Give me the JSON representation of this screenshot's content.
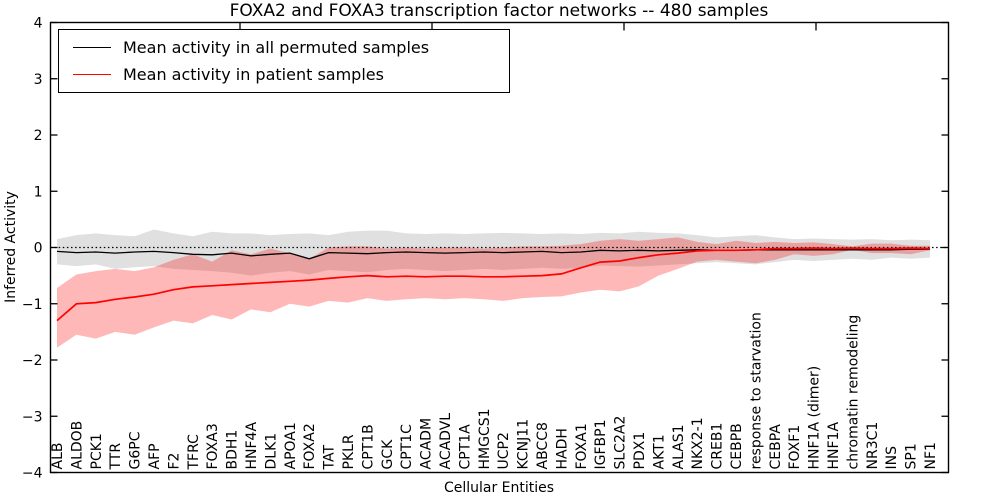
{
  "figure": {
    "title": "FOXA2 and FOXA3 transcription factor networks -- 480 samples",
    "xlabel": "Cellular Entities",
    "ylabel": "Inferred Activity"
  },
  "chart_data": {
    "type": "line",
    "title": "FOXA2 and FOXA3 transcription factor networks -- 480 samples",
    "xlabel": "Cellular Entities",
    "ylabel": "Inferred Activity",
    "ylim": [
      -4,
      4
    ],
    "yticks": [
      4,
      3,
      2,
      1,
      0,
      -1,
      -2,
      -3,
      -4
    ],
    "grid": false,
    "legend_position": "upper left",
    "zero_line": {
      "y": 0,
      "style": "dotted",
      "color": "#000000"
    },
    "categories": [
      "ALB",
      "ALDOB",
      "PCK1",
      "TTR",
      "G6PC",
      "AFP",
      "F2",
      "TFRC",
      "FOXA3",
      "BDH1",
      "HNF4A",
      "DLK1",
      "APOA1",
      "FOXA2",
      "TAT",
      "PKLR",
      "CPT1B",
      "GCK",
      "CPT1C",
      "ACADM",
      "ACADVL",
      "CPT1A",
      "HMGCS1",
      "UCP2",
      "KCNJ11",
      "ABCC8",
      "HADH",
      "FOXA1",
      "IGFBP1",
      "SLC2A2",
      "PDX1",
      "AKT1",
      "ALAS1",
      "NKX2-1",
      "CREB1",
      "CEBPB",
      "response to starvation",
      "CEBPA",
      "FOXF1",
      "HNF1A (dimer)",
      "HNF1A",
      "chromatin remodeling",
      "NR3C1",
      "INS",
      "SP1",
      "NF1"
    ],
    "series": [
      {
        "name": "Mean activity in all permuted samples",
        "color": "#000000",
        "band_color": "#000000",
        "band_opacity": 0.12,
        "values": [
          -0.07,
          -0.09,
          -0.08,
          -0.1,
          -0.08,
          -0.07,
          -0.09,
          -0.12,
          -0.13,
          -0.1,
          -0.15,
          -0.12,
          -0.1,
          -0.2,
          -0.09,
          -0.1,
          -0.11,
          -0.09,
          -0.08,
          -0.09,
          -0.1,
          -0.09,
          -0.08,
          -0.09,
          -0.08,
          -0.07,
          -0.09,
          -0.08,
          -0.05,
          -0.06,
          -0.05,
          -0.06,
          -0.05,
          -0.04,
          -0.05,
          -0.05,
          -0.04,
          -0.04,
          -0.04,
          -0.04,
          -0.04,
          -0.04,
          -0.04,
          -0.04,
          -0.03,
          -0.03
        ],
        "band_upper": [
          0.15,
          0.22,
          0.25,
          0.22,
          0.2,
          0.32,
          0.25,
          0.2,
          0.28,
          0.25,
          0.25,
          0.22,
          0.24,
          0.25,
          0.22,
          0.28,
          0.3,
          0.3,
          0.25,
          0.24,
          0.25,
          0.24,
          0.25,
          0.26,
          0.25,
          0.24,
          0.25,
          0.24,
          0.26,
          0.25,
          0.28,
          0.26,
          0.25,
          0.22,
          0.18,
          0.2,
          0.22,
          0.18,
          0.15,
          0.16,
          0.15,
          0.14,
          0.15,
          0.13,
          0.14,
          0.13
        ],
        "band_lower": [
          -0.3,
          -0.33,
          -0.3,
          -0.38,
          -0.35,
          -0.33,
          -0.38,
          -0.4,
          -0.42,
          -0.45,
          -0.5,
          -0.45,
          -0.42,
          -0.48,
          -0.4,
          -0.42,
          -0.44,
          -0.4,
          -0.38,
          -0.4,
          -0.42,
          -0.4,
          -0.38,
          -0.4,
          -0.38,
          -0.36,
          -0.38,
          -0.36,
          -0.32,
          -0.33,
          -0.34,
          -0.32,
          -0.3,
          -0.28,
          -0.26,
          -0.28,
          -0.3,
          -0.26,
          -0.22,
          -0.24,
          -0.22,
          -0.2,
          -0.22,
          -0.18,
          -0.2,
          -0.18
        ]
      },
      {
        "name": "Mean activity in patient samples",
        "color": "#ff0000",
        "band_color": "#ff0000",
        "band_opacity": 0.28,
        "values": [
          -1.3,
          -1.0,
          -0.98,
          -0.92,
          -0.88,
          -0.83,
          -0.75,
          -0.7,
          -0.68,
          -0.66,
          -0.64,
          -0.62,
          -0.6,
          -0.58,
          -0.55,
          -0.52,
          -0.5,
          -0.52,
          -0.51,
          -0.52,
          -0.51,
          -0.51,
          -0.52,
          -0.52,
          -0.51,
          -0.5,
          -0.47,
          -0.36,
          -0.26,
          -0.24,
          -0.18,
          -0.13,
          -0.1,
          -0.06,
          -0.05,
          -0.05,
          -0.04,
          -0.02,
          -0.02,
          -0.01,
          -0.02,
          -0.01,
          -0.02,
          -0.02,
          -0.01,
          -0.02
        ],
        "band_upper": [
          -0.72,
          -0.48,
          -0.42,
          -0.38,
          -0.42,
          -0.35,
          -0.22,
          -0.12,
          -0.25,
          -0.05,
          -0.12,
          -0.02,
          -0.1,
          -0.2,
          0.0,
          0.02,
          0.02,
          -0.02,
          0.0,
          -0.02,
          0.0,
          0.0,
          -0.02,
          0.0,
          0.02,
          0.02,
          0.03,
          0.06,
          0.12,
          0.15,
          0.12,
          0.15,
          0.18,
          0.1,
          0.06,
          0.12,
          0.08,
          0.1,
          0.08,
          0.09,
          0.06,
          0.02,
          0.07,
          0.07,
          0.03,
          0.03
        ],
        "band_lower": [
          -1.78,
          -1.55,
          -1.62,
          -1.5,
          -1.55,
          -1.42,
          -1.3,
          -1.35,
          -1.2,
          -1.28,
          -1.1,
          -1.15,
          -1.0,
          -1.05,
          -0.95,
          -0.98,
          -0.9,
          -0.95,
          -0.92,
          -0.9,
          -0.92,
          -0.9,
          -0.92,
          -0.95,
          -0.9,
          -0.88,
          -0.87,
          -0.8,
          -0.75,
          -0.78,
          -0.69,
          -0.5,
          -0.38,
          -0.25,
          -0.22,
          -0.25,
          -0.28,
          -0.22,
          -0.12,
          -0.15,
          -0.12,
          -0.04,
          -0.1,
          -0.1,
          -0.12,
          -0.05
        ]
      }
    ]
  }
}
